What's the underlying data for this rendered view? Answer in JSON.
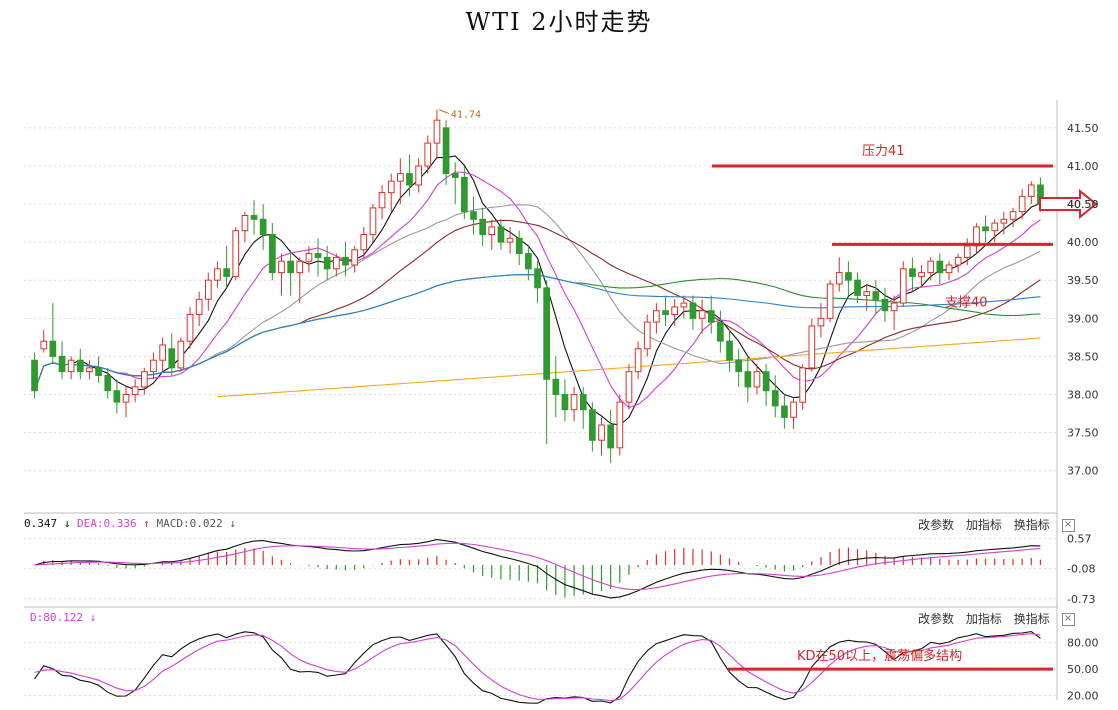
{
  "title": "WTI 2小时走势",
  "colors": {
    "up": "#d9312b",
    "down": "#2f9a2f",
    "ma5": "#111111",
    "ma10": "#d23fd2",
    "ma20": "#999999",
    "ma30": "#8b2a2a",
    "ma60": "#2e8b2e",
    "ma120": "#2f7fd1",
    "ma250": "#f0a81e",
    "level": "#d9232e",
    "dif": "#111111",
    "dea": "#d23fd2",
    "k": "#111111",
    "d": "#d23fd2"
  },
  "main": {
    "y_ticks": [
      "41.50",
      "41.00",
      "40.50",
      "40.00",
      "39.50",
      "39.00",
      "38.50",
      "38.00",
      "37.50",
      "37.00"
    ],
    "ylim": [
      36.55,
      41.8
    ],
    "high_label": "41.74",
    "resistance": {
      "label": "压力41",
      "value": 41.0
    },
    "support": {
      "label": "支撑40",
      "value": 39.97
    },
    "current_value": 40.5
  },
  "macd": {
    "label_dif": "0.347",
    "label_dea": "DEA:0.336",
    "label_macd": "MACD:0.022",
    "y_ticks": [
      "0.57",
      "-0.08",
      "-0.73"
    ],
    "ylim": [
      -0.8,
      0.8
    ]
  },
  "kd": {
    "label_d": "D:80.122",
    "y_ticks": [
      "80.00",
      "50.00",
      "20.00"
    ],
    "ylim": [
      15,
      100
    ],
    "level": {
      "label": "KD在50以上，震荡偏多结构",
      "value": 50
    }
  },
  "controls": {
    "change_params": "改参数",
    "add_indicator": "加指标",
    "switch_indicator": "换指标",
    "close": "×"
  },
  "chart_data": {
    "type": "candlestick",
    "title": "WTI 2小时走势",
    "ylim": [
      36.55,
      41.8
    ],
    "candles": [
      [
        38.45,
        38.55,
        38.05,
        37.95
      ],
      [
        38.6,
        38.85,
        38.7,
        38.55
      ],
      [
        38.7,
        39.2,
        38.5,
        38.4
      ],
      [
        38.5,
        38.7,
        38.3,
        38.2
      ],
      [
        38.3,
        38.5,
        38.45,
        38.2
      ],
      [
        38.45,
        38.6,
        38.3,
        38.2
      ],
      [
        38.3,
        38.45,
        38.35,
        38.2
      ],
      [
        38.35,
        38.5,
        38.25,
        38.15
      ],
      [
        38.25,
        38.35,
        38.05,
        37.95
      ],
      [
        38.05,
        38.2,
        37.9,
        37.75
      ],
      [
        37.9,
        38.1,
        38.0,
        37.7
      ],
      [
        38.0,
        38.2,
        38.1,
        37.9
      ],
      [
        38.1,
        38.35,
        38.3,
        38.0
      ],
      [
        38.3,
        38.55,
        38.45,
        38.2
      ],
      [
        38.45,
        38.75,
        38.65,
        38.3
      ],
      [
        38.6,
        38.8,
        38.35,
        38.25
      ],
      [
        38.35,
        38.75,
        38.7,
        38.3
      ],
      [
        38.7,
        39.15,
        39.05,
        38.6
      ],
      [
        39.05,
        39.35,
        39.25,
        38.9
      ],
      [
        39.25,
        39.6,
        39.5,
        39.1
      ],
      [
        39.5,
        39.75,
        39.65,
        39.4
      ],
      [
        39.65,
        39.95,
        39.55,
        39.4
      ],
      [
        39.55,
        40.2,
        40.15,
        39.5
      ],
      [
        40.15,
        40.4,
        40.35,
        40.0
      ],
      [
        40.35,
        40.55,
        40.3,
        40.1
      ],
      [
        40.3,
        40.5,
        40.1,
        39.9
      ],
      [
        40.1,
        40.25,
        39.6,
        39.5
      ],
      [
        39.6,
        39.85,
        39.75,
        39.3
      ],
      [
        39.75,
        39.9,
        39.6,
        39.3
      ],
      [
        39.6,
        39.8,
        39.75,
        39.2
      ],
      [
        39.75,
        39.95,
        39.85,
        39.6
      ],
      [
        39.85,
        40.05,
        39.8,
        39.55
      ],
      [
        39.8,
        39.95,
        39.65,
        39.5
      ],
      [
        39.65,
        39.85,
        39.8,
        39.55
      ],
      [
        39.8,
        40.0,
        39.7,
        39.55
      ],
      [
        39.7,
        39.95,
        39.9,
        39.6
      ],
      [
        39.9,
        40.2,
        40.1,
        39.8
      ],
      [
        40.1,
        40.5,
        40.45,
        40.0
      ],
      [
        40.45,
        40.75,
        40.65,
        40.3
      ],
      [
        40.65,
        40.9,
        40.8,
        40.4
      ],
      [
        40.8,
        41.1,
        40.9,
        40.5
      ],
      [
        40.9,
        41.15,
        40.75,
        40.6
      ],
      [
        40.75,
        41.1,
        41.0,
        40.65
      ],
      [
        41.0,
        41.4,
        41.3,
        40.9
      ],
      [
        41.3,
        41.74,
        41.6,
        41.1
      ],
      [
        41.5,
        41.6,
        40.9,
        40.75
      ],
      [
        40.9,
        41.05,
        40.85,
        40.5
      ],
      [
        40.85,
        41.0,
        40.4,
        40.3
      ],
      [
        40.4,
        40.6,
        40.3,
        40.1
      ],
      [
        40.3,
        40.45,
        40.1,
        39.95
      ],
      [
        40.1,
        40.3,
        40.2,
        39.9
      ],
      [
        40.2,
        40.3,
        40.0,
        39.9
      ],
      [
        40.0,
        40.2,
        40.05,
        39.85
      ],
      [
        40.05,
        40.15,
        39.85,
        39.7
      ],
      [
        39.85,
        39.95,
        39.65,
        39.5
      ],
      [
        39.65,
        39.75,
        39.4,
        39.2
      ],
      [
        39.4,
        39.5,
        38.2,
        37.35
      ],
      [
        38.2,
        38.5,
        38.0,
        37.7
      ],
      [
        38.0,
        38.2,
        37.8,
        37.65
      ],
      [
        37.8,
        38.1,
        38.0,
        37.65
      ],
      [
        38.0,
        38.1,
        37.8,
        37.55
      ],
      [
        37.8,
        37.9,
        37.4,
        37.25
      ],
      [
        37.4,
        37.7,
        37.6,
        37.2
      ],
      [
        37.6,
        37.8,
        37.3,
        37.1
      ],
      [
        37.3,
        38.0,
        37.9,
        37.2
      ],
      [
        37.9,
        38.4,
        38.3,
        37.8
      ],
      [
        38.3,
        38.7,
        38.6,
        38.2
      ],
      [
        38.6,
        39.05,
        38.95,
        38.5
      ],
      [
        38.95,
        39.2,
        39.1,
        38.8
      ],
      [
        39.1,
        39.3,
        39.05,
        38.9
      ],
      [
        39.05,
        39.25,
        39.15,
        38.9
      ],
      [
        39.15,
        39.3,
        39.2,
        39.0
      ],
      [
        39.2,
        39.3,
        39.0,
        38.85
      ],
      [
        39.0,
        39.25,
        39.1,
        38.8
      ],
      [
        39.1,
        39.3,
        38.95,
        38.8
      ],
      [
        38.95,
        39.1,
        38.7,
        38.55
      ],
      [
        38.7,
        38.85,
        38.45,
        38.3
      ],
      [
        38.45,
        38.6,
        38.3,
        38.1
      ],
      [
        38.3,
        38.5,
        38.1,
        37.9
      ],
      [
        38.1,
        38.4,
        38.3,
        38.0
      ],
      [
        38.3,
        38.4,
        38.05,
        37.85
      ],
      [
        38.05,
        38.25,
        37.85,
        37.7
      ],
      [
        37.85,
        38.0,
        37.7,
        37.55
      ],
      [
        37.7,
        37.95,
        37.9,
        37.55
      ],
      [
        37.9,
        38.4,
        38.35,
        37.8
      ],
      [
        38.35,
        39.0,
        38.9,
        38.3
      ],
      [
        38.9,
        39.2,
        39.0,
        38.75
      ],
      [
        39.0,
        39.5,
        39.45,
        38.95
      ],
      [
        39.45,
        39.8,
        39.6,
        39.35
      ],
      [
        39.6,
        39.75,
        39.5,
        39.3
      ],
      [
        39.5,
        39.6,
        39.3,
        39.2
      ],
      [
        39.3,
        39.45,
        39.35,
        39.1
      ],
      [
        39.35,
        39.5,
        39.25,
        39.05
      ],
      [
        39.25,
        39.4,
        39.1,
        38.95
      ],
      [
        39.1,
        39.3,
        39.2,
        38.85
      ],
      [
        39.2,
        39.75,
        39.65,
        39.15
      ],
      [
        39.65,
        39.8,
        39.55,
        39.35
      ],
      [
        39.55,
        39.7,
        39.6,
        39.4
      ],
      [
        39.6,
        39.8,
        39.75,
        39.5
      ],
      [
        39.75,
        39.85,
        39.6,
        39.45
      ],
      [
        39.6,
        39.75,
        39.7,
        39.5
      ],
      [
        39.7,
        39.85,
        39.8,
        39.6
      ],
      [
        39.8,
        40.05,
        39.95,
        39.7
      ],
      [
        39.95,
        40.25,
        40.2,
        39.85
      ],
      [
        40.2,
        40.35,
        40.15,
        40.0
      ],
      [
        40.15,
        40.3,
        40.25,
        40.0
      ],
      [
        40.25,
        40.4,
        40.3,
        40.1
      ],
      [
        40.3,
        40.45,
        40.4,
        40.2
      ],
      [
        40.4,
        40.7,
        40.6,
        40.3
      ],
      [
        40.6,
        40.8,
        40.75,
        40.5
      ],
      [
        40.75,
        40.85,
        40.5,
        40.4
      ]
    ]
  }
}
